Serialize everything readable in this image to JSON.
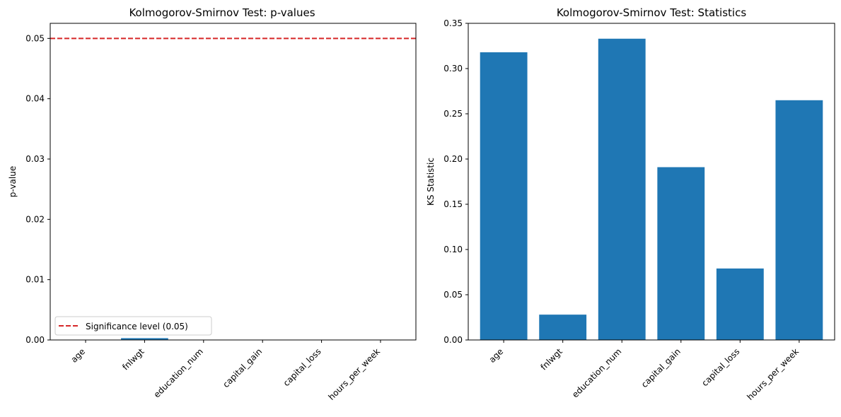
{
  "chart_data": [
    {
      "type": "bar",
      "title": "Kolmogorov-Smirnov Test: p-values",
      "xlabel": "",
      "ylabel": "p-value",
      "categories": [
        "age",
        "fnlwgt",
        "education_num",
        "capital_gain",
        "capital_loss",
        "hours_per_week"
      ],
      "values": [
        0.0,
        0.0003,
        0.0,
        0.0,
        0.0,
        0.0
      ],
      "ylim": [
        0,
        0.0525
      ],
      "yticks": [
        "0.00",
        "0.01",
        "0.02",
        "0.03",
        "0.04",
        "0.05"
      ],
      "bar_color": "#1f77b4",
      "grid": false,
      "reference_line": {
        "value": 0.05,
        "color": "#d62728",
        "style": "dashed"
      },
      "legend": {
        "placement": "bottom-left",
        "entries": [
          "Significance level (0.05)"
        ]
      }
    },
    {
      "type": "bar",
      "title": "Kolmogorov-Smirnov Test: Statistics",
      "xlabel": "",
      "ylabel": "KS Statistic",
      "categories": [
        "age",
        "fnlwgt",
        "education_num",
        "capital_gain",
        "capital_loss",
        "hours_per_week"
      ],
      "values": [
        0.318,
        0.028,
        0.333,
        0.191,
        0.079,
        0.265
      ],
      "ylim": [
        0,
        0.35
      ],
      "yticks": [
        "0.00",
        "0.05",
        "0.10",
        "0.15",
        "0.20",
        "0.25",
        "0.30",
        "0.35"
      ],
      "bar_color": "#1f77b4",
      "grid": false
    }
  ]
}
